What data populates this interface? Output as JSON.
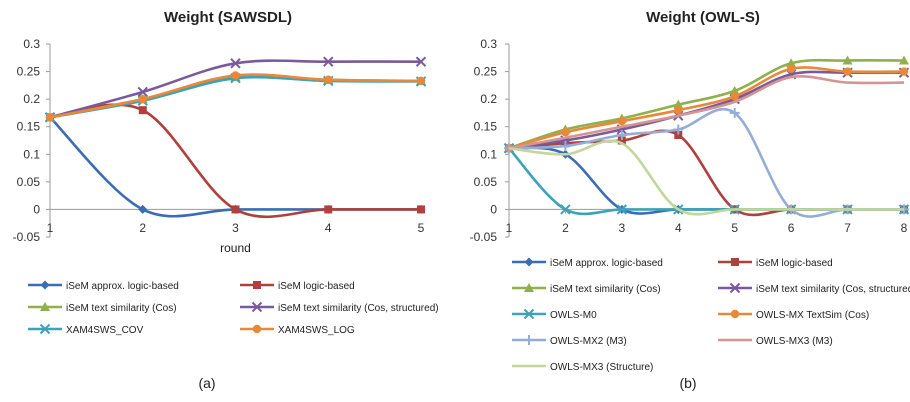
{
  "chart_data": [
    {
      "type": "line",
      "title": "Weight (SAWSDL)",
      "xlabel": "round",
      "ylabel": "",
      "caption": "(a)",
      "x": [
        1,
        2,
        3,
        4,
        5
      ],
      "xticks": [
        "1",
        "2",
        "3",
        "4",
        "5"
      ],
      "ylim": [
        -0.05,
        0.3
      ],
      "yticks": [
        "-0.05",
        "0",
        "0.05",
        "0.1",
        "0.15",
        "0.2",
        "0.25",
        "0.3"
      ],
      "smooth": true,
      "legend_position": "bottom",
      "series": [
        {
          "name": "iSeM approx. logic-based",
          "color": "#3C6DB4",
          "marker": "diamond",
          "values": [
            0.167,
            0.0,
            0.0,
            0.0,
            0.0
          ]
        },
        {
          "name": "iSeM logic-based",
          "color": "#B0403C",
          "marker": "square",
          "values": [
            0.167,
            0.18,
            0.0,
            0.0,
            0.0
          ]
        },
        {
          "name": "iSeM text similarity (Cos)",
          "color": "#8FB04A",
          "marker": "triangle",
          "values": [
            0.167,
            0.2,
            0.24,
            0.235,
            0.233
          ]
        },
        {
          "name": "iSeM text similarity (Cos, structured)",
          "color": "#7A5A9C",
          "marker": "x",
          "values": [
            0.167,
            0.213,
            0.265,
            0.268,
            0.268
          ]
        },
        {
          "name": "XAM4SWS_COV",
          "color": "#3DA2B8",
          "marker": "x",
          "values": [
            0.167,
            0.197,
            0.238,
            0.233,
            0.232
          ]
        },
        {
          "name": "XAM4SWS_LOG",
          "color": "#E8893A",
          "marker": "circle",
          "values": [
            0.167,
            0.2,
            0.243,
            0.235,
            0.233
          ]
        }
      ]
    },
    {
      "type": "line",
      "title": "Weight (OWL-S)",
      "xlabel": "",
      "ylabel": "",
      "caption": "(b)",
      "x": [
        1,
        2,
        3,
        4,
        5,
        6,
        7,
        8
      ],
      "xticks": [
        "1",
        "2",
        "3",
        "4",
        "5",
        "6",
        "7",
        "8"
      ],
      "ylim": [
        -0.05,
        0.3
      ],
      "yticks": [
        "-0.05",
        "0",
        "0.05",
        "0.1",
        "0.15",
        "0.2",
        "0.25",
        "0.3"
      ],
      "smooth": true,
      "legend_position": "bottom",
      "series": [
        {
          "name": "iSeM approx. logic-based",
          "color": "#3C6DB4",
          "marker": "diamond",
          "values": [
            0.111,
            0.1,
            0.0,
            0.0,
            0.0,
            0.0,
            0.0,
            0.0
          ]
        },
        {
          "name": "iSeM logic-based",
          "color": "#B0403C",
          "marker": "square",
          "values": [
            0.111,
            0.12,
            0.125,
            0.135,
            0.0,
            0.0,
            0.0,
            0.0
          ]
        },
        {
          "name": "iSeM text similarity (Cos)",
          "color": "#8FB04A",
          "marker": "triangle",
          "values": [
            0.111,
            0.145,
            0.165,
            0.19,
            0.215,
            0.265,
            0.27,
            0.27
          ]
        },
        {
          "name": "iSeM text similarity (Cos, structured)",
          "color": "#7A5A9C",
          "marker": "x",
          "values": [
            0.111,
            0.125,
            0.145,
            0.17,
            0.2,
            0.245,
            0.248,
            0.248
          ]
        },
        {
          "name": "OWLS-M0",
          "color": "#3DA2B8",
          "marker": "x",
          "values": [
            0.111,
            0.0,
            0.0,
            0.0,
            0.0,
            0.0,
            0.0,
            0.0
          ]
        },
        {
          "name": "OWLS-MX TextSim (Cos)",
          "color": "#E8893A",
          "marker": "circle",
          "values": [
            0.111,
            0.14,
            0.16,
            0.18,
            0.205,
            0.255,
            0.25,
            0.25
          ]
        },
        {
          "name": "OWLS-MX2 (M3)",
          "color": "#93AED6",
          "marker": "plus",
          "values": [
            0.111,
            0.115,
            0.135,
            0.145,
            0.175,
            0.0,
            0.0,
            0.0
          ]
        },
        {
          "name": "OWLS-MX3 (M3)",
          "color": "#D49594",
          "marker": "none",
          "values": [
            0.111,
            0.13,
            0.15,
            0.17,
            0.195,
            0.24,
            0.23,
            0.23
          ]
        },
        {
          "name": "OWLS-MX3 (Structure)",
          "color": "#C3D69B",
          "marker": "none",
          "values": [
            0.111,
            0.1,
            0.12,
            0.0,
            0.0,
            0.0,
            0.0,
            0.0
          ]
        }
      ]
    }
  ]
}
